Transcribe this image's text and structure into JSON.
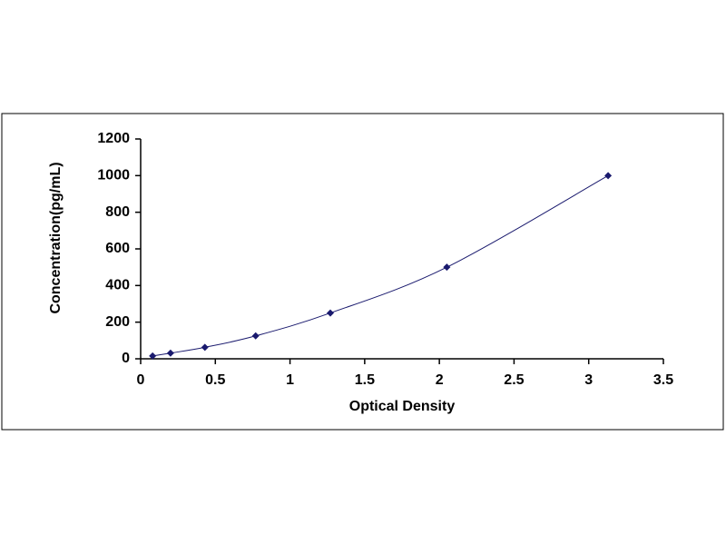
{
  "chart_data": {
    "type": "scatter",
    "xlabel": "Optical Density",
    "ylabel": "Concentration(pg/mL)",
    "series": [
      {
        "color": "#1a1a6e",
        "x": [
          0.08,
          0.2,
          0.43,
          0.77,
          1.27,
          2.05,
          3.13
        ],
        "values": [
          15.6,
          31.2,
          62.5,
          125,
          250,
          500,
          1000
        ]
      }
    ],
    "trendline": "smooth",
    "xlim": [
      0,
      3.5
    ],
    "xticks": [
      0,
      0.5,
      1,
      1.5,
      2,
      2.5,
      3,
      3.5
    ],
    "ylim": [
      0,
      1200
    ],
    "yticks": [
      0,
      200,
      400,
      600,
      800,
      1000,
      1200
    ],
    "grid": false
  }
}
